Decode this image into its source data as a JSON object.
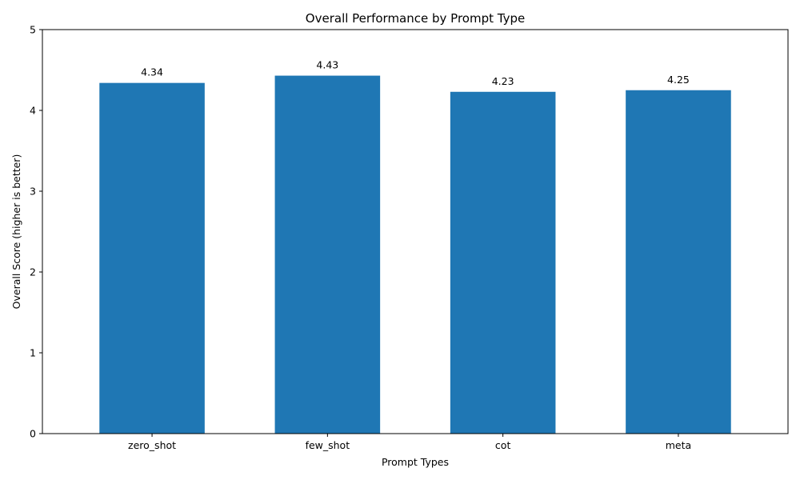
{
  "chart_data": {
    "type": "bar",
    "title": "Overall Performance by Prompt Type",
    "xlabel": "Prompt Types",
    "ylabel": "Overall Score (higher is better)",
    "categories": [
      "zero_shot",
      "few_shot",
      "cot",
      "meta"
    ],
    "values": [
      4.34,
      4.43,
      4.23,
      4.25
    ],
    "data_labels": [
      "4.34",
      "4.43",
      "4.23",
      "4.25"
    ],
    "ylim": [
      0,
      5
    ],
    "yticks": [
      0,
      1,
      2,
      3,
      4,
      5
    ],
    "grid": false,
    "legend": "none",
    "bar_color": "#1f77b4"
  }
}
